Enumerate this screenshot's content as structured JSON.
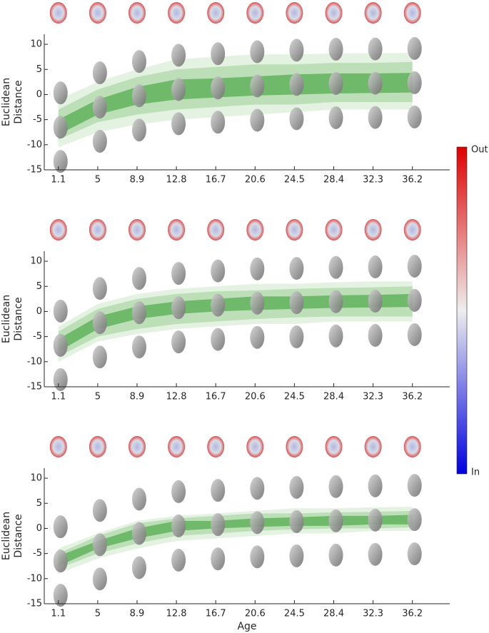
{
  "chart_data": [
    {
      "type": "band",
      "ylabel": [
        "Euclidean",
        "Distance"
      ],
      "x": [
        1.1,
        5,
        8.9,
        12.8,
        16.7,
        20.6,
        24.5,
        28.4,
        32.3,
        36.2
      ],
      "xlim": [
        -0.3,
        39.9
      ],
      "xticks": [
        1.1,
        5,
        8.9,
        12.8,
        16.7,
        20.6,
        24.5,
        28.4,
        32.3,
        36.2
      ],
      "ylim": [
        -15,
        12
      ],
      "yticks": [
        -15,
        -10,
        -5,
        0,
        5,
        10
      ],
      "bands": [
        {
          "color": "#e4f2e1",
          "upper": [
            -1,
            2.5,
            5,
            7,
            7.5,
            8,
            8,
            8.2,
            8.2,
            8.3
          ],
          "lower": [
            -10.5,
            -7.5,
            -6,
            -5,
            -4.5,
            -4,
            -3.5,
            -3,
            -3,
            -3
          ]
        },
        {
          "color": "#bddfb7",
          "upper": [
            -3,
            1,
            3.5,
            5,
            5.5,
            6,
            6,
            6.3,
            6.3,
            6.5
          ],
          "lower": [
            -9,
            -5.5,
            -4,
            -3,
            -2.5,
            -2,
            -2,
            -1.5,
            -1.5,
            -1.5
          ]
        },
        {
          "color": "#6fb96b",
          "upper": [
            -5,
            -1,
            1.5,
            3,
            3.2,
            3.6,
            4,
            4.2,
            4.2,
            4.3
          ],
          "lower": [
            -8,
            -4,
            -2,
            -1,
            -0.6,
            -0.2,
            0,
            0.2,
            0.3,
            0.4
          ]
        }
      ]
    },
    {
      "type": "band",
      "ylabel": [
        "Euclidean",
        "Distance"
      ],
      "x": [
        1.1,
        5,
        8.9,
        12.8,
        16.7,
        20.6,
        24.5,
        28.4,
        32.3,
        36.2
      ],
      "xlim": [
        -0.3,
        39.9
      ],
      "xticks": [
        1.1,
        5,
        8.9,
        12.8,
        16.7,
        20.6,
        24.5,
        28.4,
        32.3,
        36.2
      ],
      "ylim": [
        -15,
        12
      ],
      "yticks": [
        -15,
        -10,
        -5,
        0,
        5,
        10
      ],
      "bands": [
        {
          "color": "#e4f2e1",
          "upper": [
            -3,
            1.5,
            3.5,
            4.5,
            5,
            5.5,
            5.5,
            5.8,
            6,
            6
          ],
          "lower": [
            -10,
            -6,
            -4.5,
            -3.5,
            -3,
            -2.5,
            -2.5,
            -2,
            -2,
            -2
          ]
        },
        {
          "color": "#bddfb7",
          "upper": [
            -4,
            0.5,
            2.5,
            3.5,
            4,
            4.2,
            4.5,
            4.7,
            4.8,
            5
          ],
          "lower": [
            -9,
            -5,
            -3.5,
            -2.5,
            -2,
            -1.5,
            -1.2,
            -1,
            -1,
            -1
          ]
        },
        {
          "color": "#6fb96b",
          "upper": [
            -5.5,
            -1,
            1,
            2,
            2.5,
            3,
            3,
            3.2,
            3.3,
            3.5
          ],
          "lower": [
            -8,
            -3.5,
            -1.5,
            -0.5,
            0,
            0.3,
            0.5,
            0.7,
            0.8,
            0.9
          ]
        }
      ]
    },
    {
      "type": "band",
      "ylabel": [
        "Euclidean",
        "Distance"
      ],
      "xlabel": "Age",
      "x": [
        1.1,
        5,
        8.9,
        12.8,
        16.7,
        20.6,
        24.5,
        28.4,
        32.3,
        36.2
      ],
      "xlim": [
        -0.3,
        39.9
      ],
      "xticks": [
        1.1,
        5,
        8.9,
        12.8,
        16.7,
        20.6,
        24.5,
        28.4,
        32.3,
        36.2
      ],
      "ylim": [
        -15,
        12
      ],
      "yticks": [
        -15,
        -10,
        -5,
        0,
        5,
        10
      ],
      "bands": [
        {
          "color": "#e4f2e1",
          "upper": [
            -4,
            -1,
            1.5,
            2.5,
            3,
            3.5,
            4,
            4,
            4.2,
            4.3
          ],
          "lower": [
            -9,
            -6,
            -4,
            -2.5,
            -2,
            -1.5,
            -1,
            -1,
            -0.5,
            -0.5
          ]
        },
        {
          "color": "#bddfb7",
          "upper": [
            -5,
            -1.5,
            1,
            2,
            2.5,
            3,
            3,
            3.2,
            3.3,
            3.5
          ],
          "lower": [
            -8,
            -5,
            -3,
            -1.5,
            -1,
            -0.5,
            -0.2,
            0,
            0,
            0.2
          ]
        },
        {
          "color": "#6fb96b",
          "upper": [
            -5.5,
            -2.5,
            0,
            1.5,
            1.5,
            2,
            2.2,
            2.5,
            2.5,
            2.7
          ],
          "lower": [
            -7.5,
            -4,
            -2,
            -0.5,
            0,
            0.3,
            0.5,
            0.5,
            0.8,
            0.8
          ]
        }
      ]
    }
  ],
  "colorbar": {
    "top_label": "Out",
    "bottom_label": "In"
  }
}
